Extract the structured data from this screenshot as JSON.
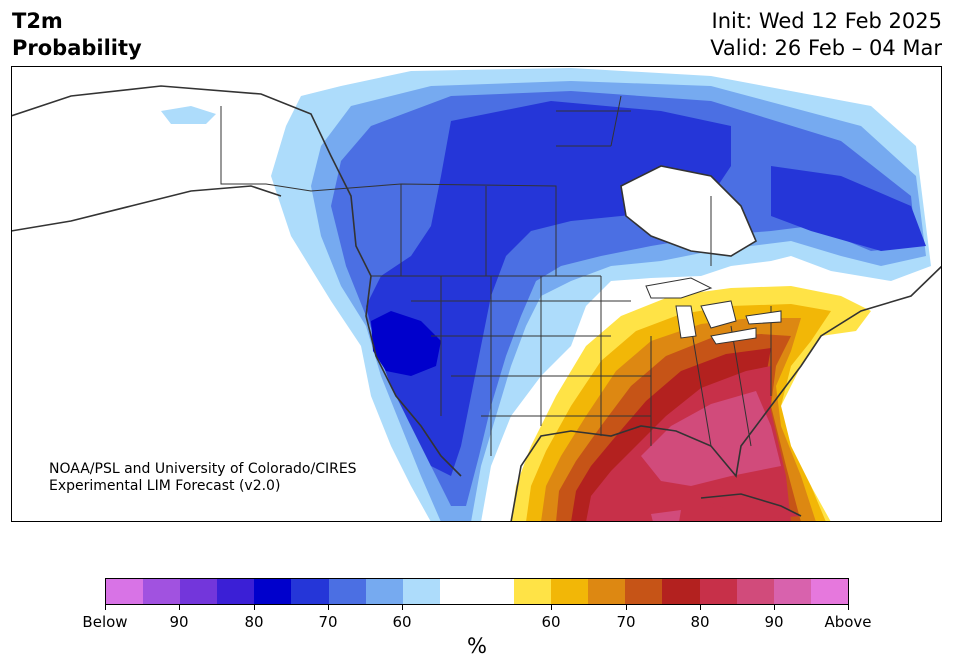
{
  "header": {
    "title_line1": "T2m",
    "title_line2": "Probability",
    "init": "Init: Wed 12 Feb 2025",
    "valid": "Valid: 26 Feb – 04 Mar"
  },
  "credit": {
    "line1": "NOAA/PSL and University of Colorado/CIRES",
    "line2": "Experimental LIM Forecast (v2.0)"
  },
  "colorbar": {
    "colors": [
      "#d873e6",
      "#a152e0",
      "#7336db",
      "#3b1fd6",
      "#0000cc",
      "#2536d8",
      "#4b6fe3",
      "#76aaf0",
      "#addcfb",
      "#ffffff",
      "#ffffff",
      "#ffe346",
      "#f2b707",
      "#dd8812",
      "#c65417",
      "#b3211f",
      "#c73049",
      "#d14b7b",
      "#d862ad",
      "#e678dd"
    ],
    "tick_labels": [
      "Below",
      "90",
      "80",
      "70",
      "60",
      "60",
      "70",
      "80",
      "90",
      "Above"
    ],
    "unit": "%"
  },
  "legend_colors": {
    "cold_strong": "#0000cc",
    "cold_mid": "#2536d8",
    "cold_low": "#addcfb",
    "warm_low": "#ffe346",
    "warm_high": "#d14b7b",
    "border": "#333333"
  }
}
